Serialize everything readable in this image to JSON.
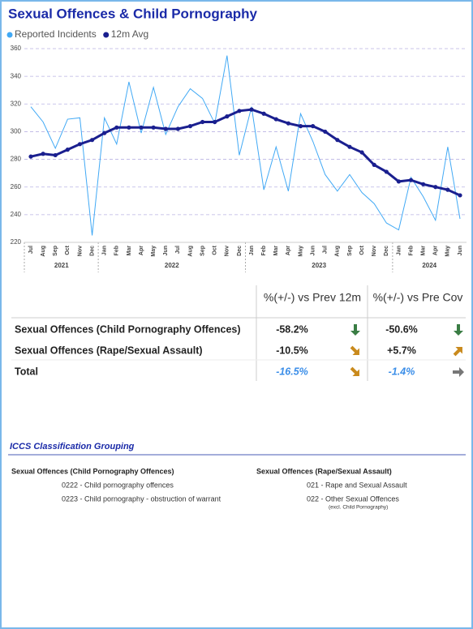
{
  "chart_data": {
    "type": "line",
    "title": "Sexual Offences & Child Pornography",
    "legend": "top-left",
    "grid": true,
    "categories": [
      "Jul",
      "Aug",
      "Sep",
      "Oct",
      "Nov",
      "Dec",
      "Jan",
      "Feb",
      "Mar",
      "Apr",
      "May",
      "Jun",
      "Jul",
      "Aug",
      "Sep",
      "Oct",
      "Nov",
      "Dec",
      "Jan",
      "Feb",
      "Mar",
      "Apr",
      "May",
      "Jun",
      "Jul",
      "Aug",
      "Sep",
      "Oct",
      "Nov",
      "Dec",
      "Jan",
      "Feb",
      "Mar",
      "Apr",
      "May",
      "Jun"
    ],
    "x_groups": [
      {
        "label": "2021",
        "count": 6
      },
      {
        "label": "2022",
        "count": 12
      },
      {
        "label": "2023",
        "count": 12
      },
      {
        "label": "2024",
        "count": 6
      }
    ],
    "ylim": [
      220,
      360
    ],
    "yticks": [
      220,
      240,
      260,
      280,
      300,
      320,
      340,
      360
    ],
    "series": [
      {
        "name": "Reported Incidents",
        "color": "#41a9f5",
        "values": [
          318,
          307,
          288,
          309,
          310,
          225,
          310,
          291,
          336,
          299,
          332,
          298,
          318,
          331,
          324,
          306,
          355,
          283,
          318,
          258,
          289,
          257,
          313,
          293,
          269,
          257,
          269,
          256,
          248,
          234,
          229,
          267,
          253,
          236,
          289,
          237
        ]
      },
      {
        "name": "12m Avg",
        "color": "#1a1f8f",
        "values": [
          282,
          284,
          283,
          287,
          291,
          294,
          299,
          303,
          303,
          303,
          303,
          302,
          302,
          304,
          307,
          307,
          311,
          315,
          316,
          313,
          309,
          306,
          304,
          304,
          300,
          294,
          289,
          285,
          276,
          271,
          264,
          265,
          262,
          260,
          258,
          254
        ]
      }
    ]
  },
  "table": {
    "columns": [
      "%(+/-) vs Prev 12m",
      "%(+/-) vs Pre Cov"
    ],
    "rows": [
      {
        "label": "Sexual Offences (Child Pornography Offences)",
        "values": [
          "-58.2%",
          "-50.6%"
        ]
      },
      {
        "label": "Sexual Offences (Rape/Sexual Assault)",
        "values": [
          "-10.5%",
          "+5.7%"
        ]
      },
      {
        "label": "Total",
        "values": [
          "-16.5%",
          "-1.4%"
        ]
      }
    ]
  },
  "classification": {
    "title": "ICCS Classification Grouping",
    "groups": [
      {
        "heading": "Sexual Offences (Child Pornography Offences)",
        "items": [
          "0222 - Child pornography offences",
          "0223 - Child pornography - obstruction of warrant"
        ]
      },
      {
        "heading": "Sexual Offences (Rape/Sexual Assault)",
        "items": [
          "021 - Rape and Sexual Assault",
          "022 - Other Sexual Offences"
        ],
        "note": "(excl. Child Pornography)"
      }
    ]
  }
}
